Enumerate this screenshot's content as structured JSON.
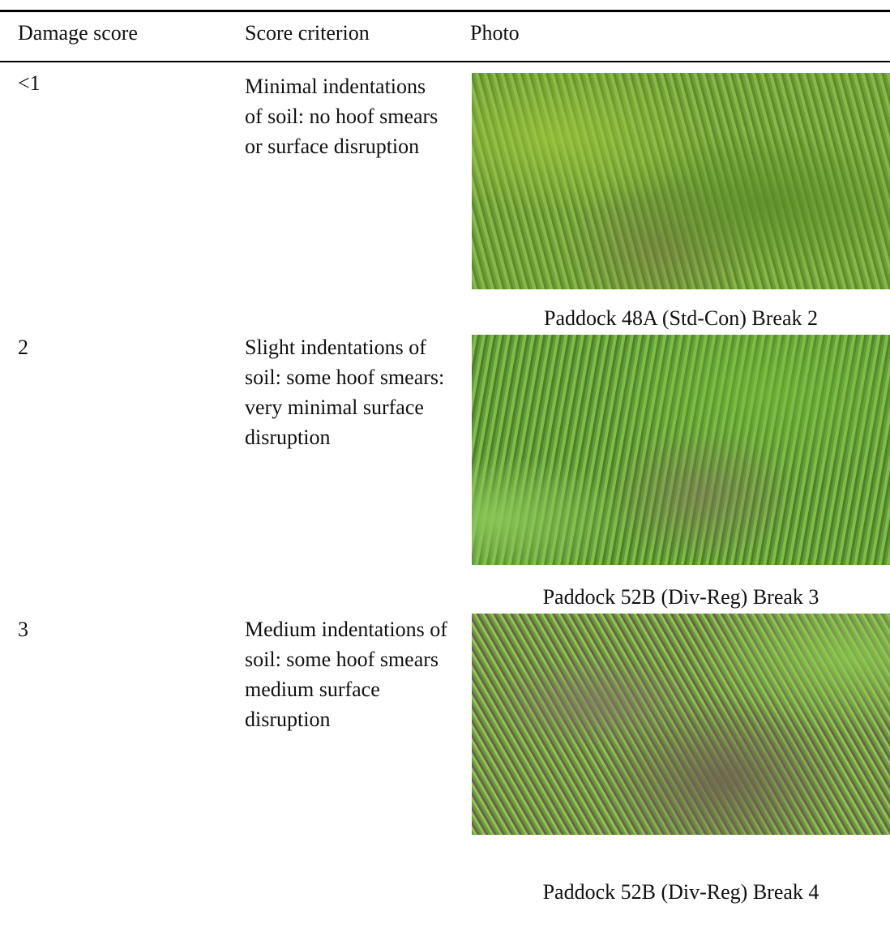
{
  "table": {
    "headers": [
      "Damage score",
      "Score criterion",
      "Photo"
    ],
    "rows": [
      [
        "<1",
        "Minimal indentations of soil: no hoof smears or surface disruption",
        "Paddock 48A (Std-Con) Break 2"
      ],
      [
        "2",
        "Slight indentations of soil: some hoof smears: very minimal surface disruption",
        "Paddock 52B (Div-Reg) Break 3"
      ],
      [
        "3",
        "Medium indentations of soil: some hoof smears medium surface disruption",
        "Paddock 52B (Div-Reg) Break 4"
      ]
    ]
  }
}
